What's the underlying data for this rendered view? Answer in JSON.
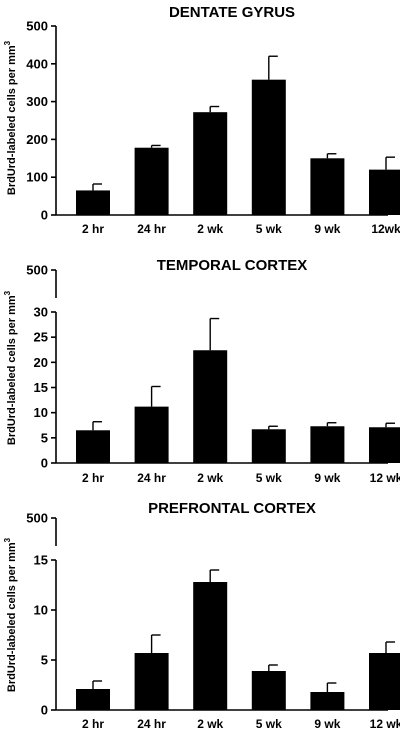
{
  "chart_data": [
    {
      "type": "bar",
      "title": "DENTATE GYRUS",
      "ylabel": "BrdUrd-labeled cells per mm",
      "ylabel_superscript": "3",
      "categories": [
        "2 hr",
        "24 hr",
        "2 wk",
        "5 wk",
        "9 wk",
        "12wk"
      ],
      "values": [
        65,
        178,
        272,
        358,
        150,
        120
      ],
      "errors": [
        17,
        6,
        15,
        62,
        12,
        33
      ],
      "ylim": [
        0,
        500
      ],
      "yticks": [
        0,
        100,
        200,
        300,
        400,
        500
      ],
      "y_break": false,
      "grid": false
    },
    {
      "type": "bar",
      "title": "TEMPORAL  CORTEX",
      "ylabel": "BrdUrd-labeled cells per mm",
      "ylabel_superscript": "3",
      "categories": [
        "2 hr",
        "24 hr",
        "2 wk",
        "5 wk",
        "9 wk",
        "12 wk"
      ],
      "values": [
        6.5,
        11.2,
        22.4,
        6.7,
        7.3,
        7.1
      ],
      "errors": [
        1.7,
        4.0,
        6.3,
        0.6,
        0.7,
        0.8
      ],
      "ylim": [
        0,
        30
      ],
      "yticks": [
        0,
        5,
        10,
        15,
        20,
        25,
        30
      ],
      "y_break": true,
      "y_break_label": "500",
      "grid": false
    },
    {
      "type": "bar",
      "title": "PREFRONTAL CORTEX",
      "ylabel": "BrdUrd-labeled cells per mm",
      "ylabel_superscript": "3",
      "categories": [
        "2 hr",
        "24 hr",
        "2 wk",
        "5 wk",
        "9 wk",
        "12 wk"
      ],
      "values": [
        2.1,
        5.7,
        12.8,
        3.9,
        1.8,
        5.7
      ],
      "errors": [
        0.8,
        1.8,
        1.2,
        0.6,
        0.9,
        1.1
      ],
      "ylim": [
        0,
        15
      ],
      "yticks": [
        0,
        5,
        10,
        15
      ],
      "y_break": true,
      "y_break_label": "500",
      "grid": false
    }
  ]
}
